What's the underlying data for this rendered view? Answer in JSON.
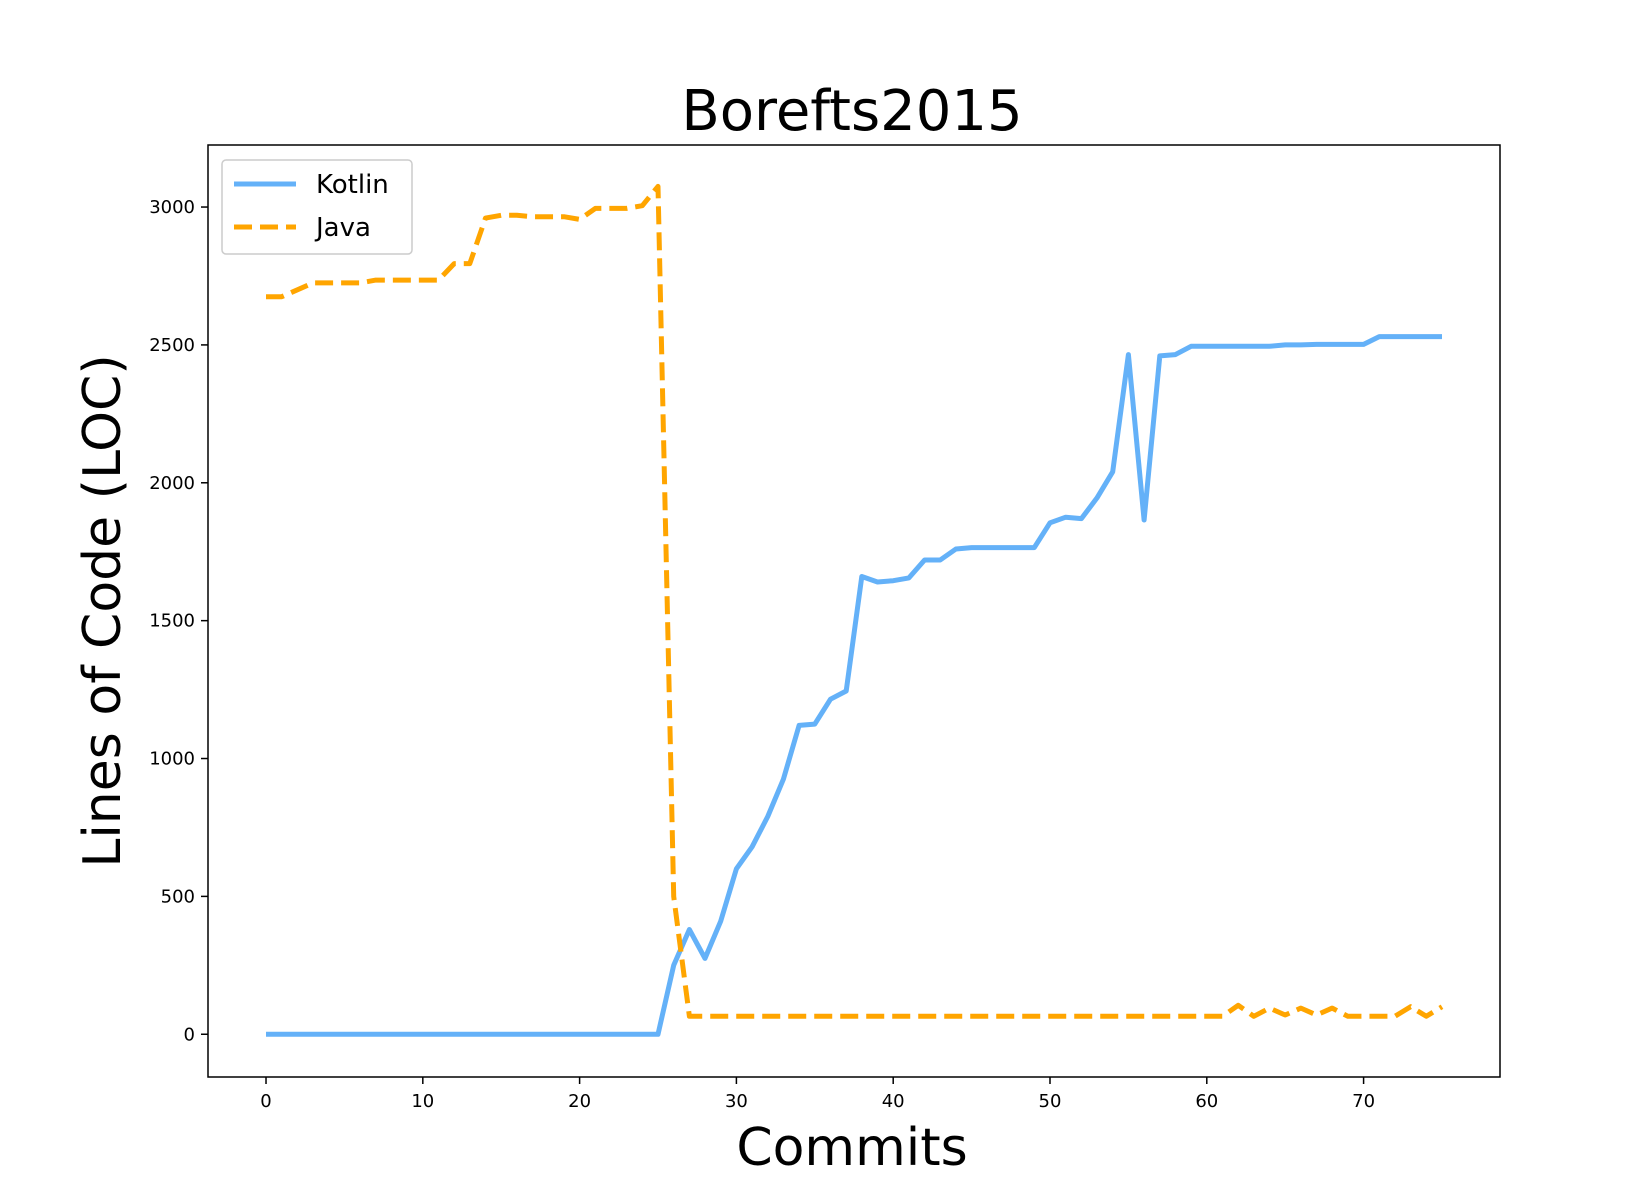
{
  "chart_data": {
    "type": "line",
    "title": "Borefts2015",
    "xlabel": "Commits",
    "ylabel": "Lines of Code (LOC)",
    "xlim": [
      -3.7,
      78.7
    ],
    "ylim": [
      -155,
      3225
    ],
    "xticks": [
      0,
      10,
      20,
      30,
      40,
      50,
      60,
      70
    ],
    "yticks": [
      0,
      500,
      1000,
      1500,
      2000,
      2500,
      3000
    ],
    "grid": false,
    "legend_position": "top-left",
    "colors": {
      "Kotlin": "#64b1f8",
      "Java": "#ffa500"
    },
    "series": [
      {
        "name": "Kotlin",
        "style": "solid",
        "x": [
          0,
          1,
          2,
          3,
          4,
          5,
          6,
          7,
          8,
          9,
          10,
          11,
          12,
          13,
          14,
          15,
          16,
          17,
          18,
          19,
          20,
          21,
          22,
          23,
          24,
          25,
          26,
          27,
          28,
          29,
          30,
          31,
          32,
          33,
          34,
          35,
          36,
          37,
          38,
          39,
          40,
          41,
          42,
          43,
          44,
          45,
          46,
          47,
          48,
          49,
          50,
          51,
          52,
          53,
          54,
          55,
          56,
          57,
          58,
          59,
          60,
          61,
          62,
          63,
          64,
          65,
          66,
          67,
          68,
          69,
          70,
          71,
          72,
          73,
          74,
          75
        ],
        "values": [
          0,
          0,
          0,
          0,
          0,
          0,
          0,
          0,
          0,
          0,
          0,
          0,
          0,
          0,
          0,
          0,
          0,
          0,
          0,
          0,
          0,
          0,
          0,
          0,
          0,
          0,
          250,
          380,
          275,
          410,
          600,
          680,
          790,
          925,
          1120,
          1125,
          1215,
          1245,
          1660,
          1640,
          1645,
          1655,
          1720,
          1720,
          1760,
          1765,
          1765,
          1765,
          1765,
          1765,
          1855,
          1875,
          1870,
          1945,
          2040,
          2465,
          1865,
          2460,
          2465,
          2495,
          2495,
          2495,
          2495,
          2495,
          2495,
          2500,
          2500,
          2502,
          2502,
          2502,
          2502,
          2530,
          2530,
          2530,
          2530,
          2530
        ]
      },
      {
        "name": "Java",
        "style": "dashed",
        "x": [
          0,
          1,
          2,
          3,
          4,
          5,
          6,
          7,
          8,
          9,
          10,
          11,
          12,
          13,
          14,
          15,
          16,
          17,
          18,
          19,
          20,
          21,
          22,
          23,
          24,
          25,
          26,
          27,
          28,
          29,
          30,
          31,
          32,
          33,
          34,
          35,
          36,
          37,
          38,
          39,
          40,
          41,
          42,
          43,
          44,
          45,
          46,
          47,
          48,
          49,
          50,
          51,
          52,
          53,
          54,
          55,
          56,
          57,
          58,
          59,
          60,
          61,
          62,
          63,
          64,
          65,
          66,
          67,
          68,
          69,
          70,
          71,
          72,
          73,
          74,
          75
        ],
        "values": [
          2675,
          2675,
          2700,
          2725,
          2725,
          2725,
          2725,
          2735,
          2735,
          2735,
          2735,
          2735,
          2795,
          2795,
          2960,
          2970,
          2970,
          2965,
          2965,
          2965,
          2955,
          2995,
          2995,
          2995,
          3005,
          3075,
          500,
          65,
          65,
          65,
          65,
          65,
          65,
          65,
          65,
          65,
          65,
          65,
          65,
          65,
          65,
          65,
          65,
          65,
          65,
          65,
          65,
          65,
          65,
          65,
          65,
          65,
          65,
          65,
          65,
          65,
          65,
          65,
          65,
          65,
          65,
          65,
          105,
          65,
          95,
          70,
          95,
          70,
          95,
          65,
          65,
          65,
          65,
          100,
          65,
          100
        ]
      }
    ]
  }
}
